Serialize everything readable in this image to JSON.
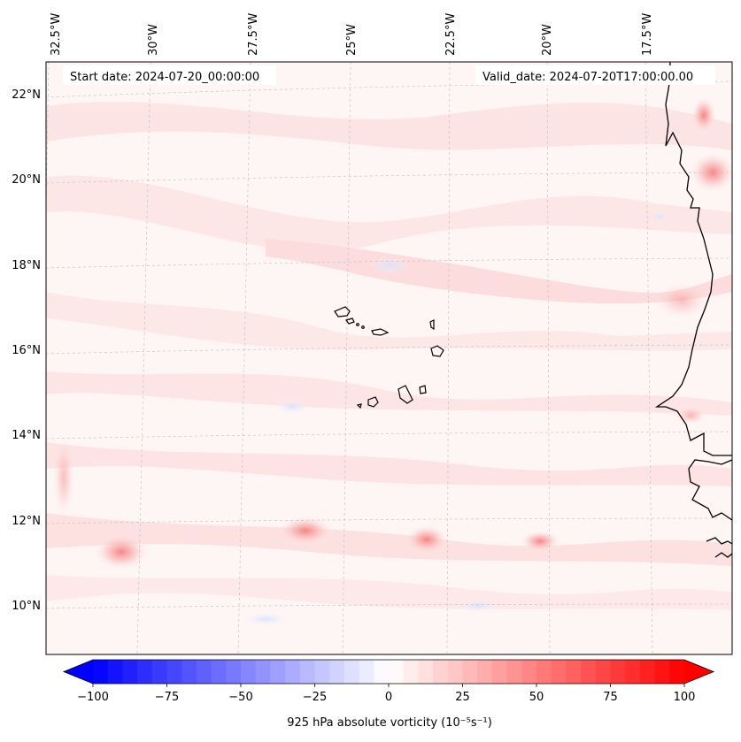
{
  "map": {
    "start_date": "Start date: 2024-07-20_00:00:00",
    "valid_date": "Valid_date: 2024-07-20T17:00:00.00",
    "longitude_labels": [
      "32.5°W",
      "30°W",
      "27.5°W",
      "25°W",
      "22.5°W",
      "20°W",
      "17.5°W"
    ],
    "latitude_labels": [
      "22°N",
      "20°N",
      "18°N",
      "16°N",
      "14°N",
      "12°N",
      "10°N"
    ]
  },
  "colorbar": {
    "ticks": [
      "−100",
      "−75",
      "−50",
      "−25",
      "0",
      "25",
      "50",
      "75",
      "100"
    ],
    "label": "925 hPa absolute vorticity (10⁻⁵s⁻¹)",
    "min": -100,
    "max": 100,
    "colors": {
      "negative": "#0000ff",
      "zero": "#ffffff",
      "positive": "#ff0000"
    }
  }
}
